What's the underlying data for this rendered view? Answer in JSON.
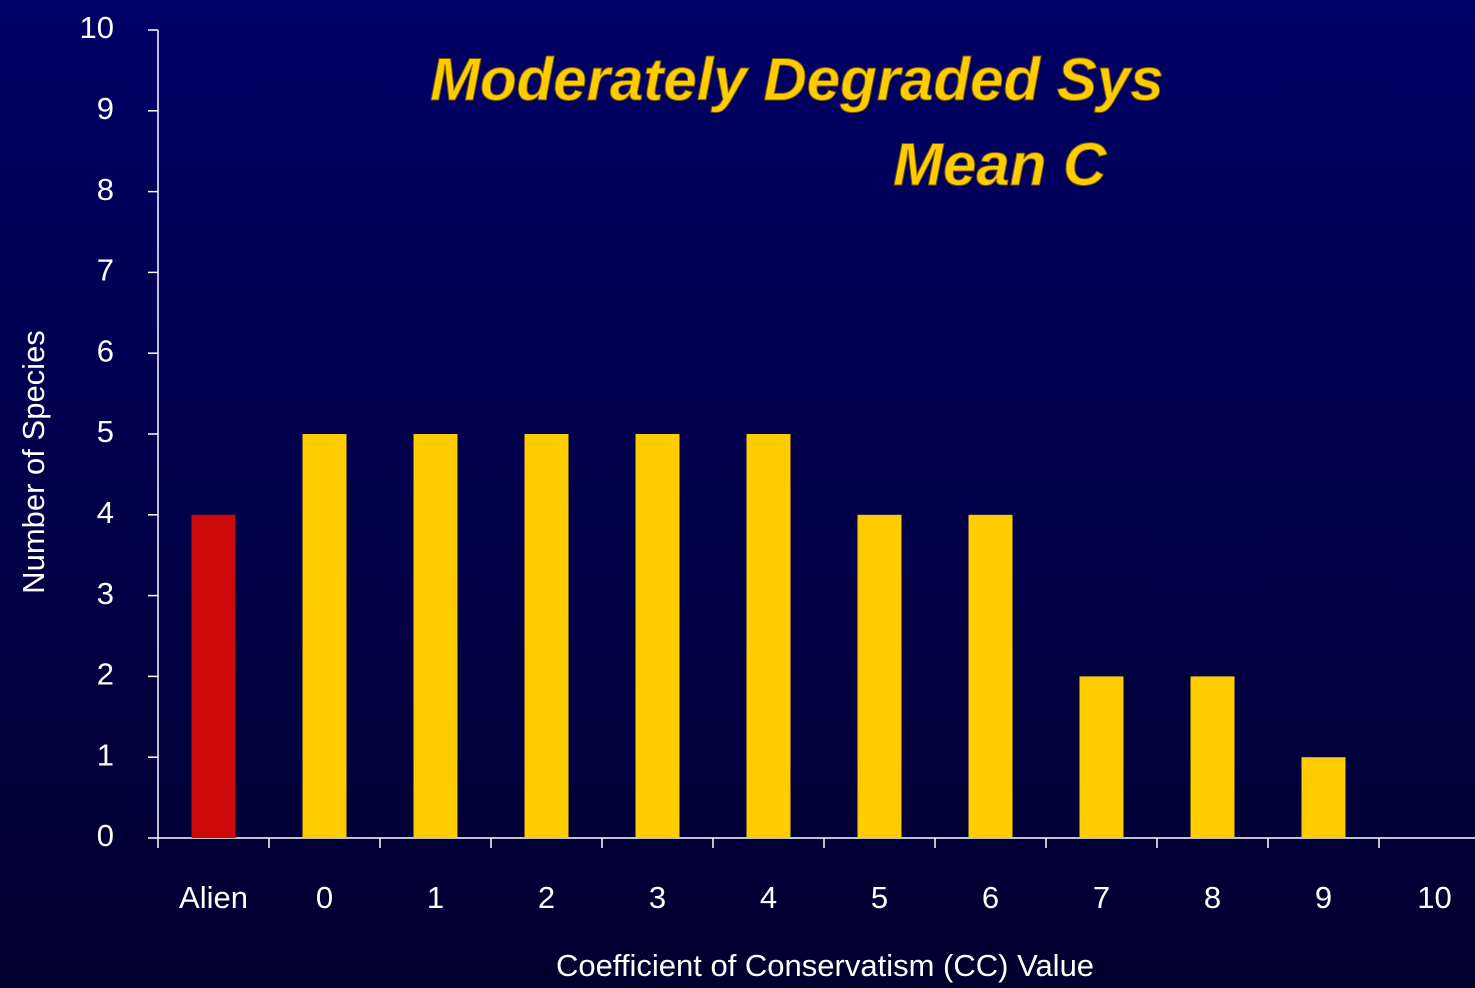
{
  "chart_data": {
    "type": "bar",
    "title": [
      "Moderately Degraded Sys",
      "Mean C"
    ],
    "x_label": "Coefficient of Conservatism (CC) Value",
    "y_label": "Number of Species",
    "categories": [
      "Alien",
      "0",
      "1",
      "2",
      "3",
      "4",
      "5",
      "6",
      "7",
      "8",
      "9",
      "10"
    ],
    "values": [
      4,
      5,
      5,
      5,
      5,
      5,
      4,
      4,
      2,
      2,
      1,
      0
    ],
    "colors": [
      "#cc0a0a",
      "#ffcc00",
      "#ffcc00",
      "#ffcc00",
      "#ffcc00",
      "#ffcc00",
      "#ffcc00",
      "#ffcc00",
      "#ffcc00",
      "#ffcc00",
      "#ffcc00",
      "#ffcc00"
    ],
    "ylim": [
      0,
      10
    ],
    "yticks": [
      0,
      1,
      2,
      3,
      4,
      5,
      6,
      7,
      8,
      9,
      10
    ],
    "grid": false
  }
}
